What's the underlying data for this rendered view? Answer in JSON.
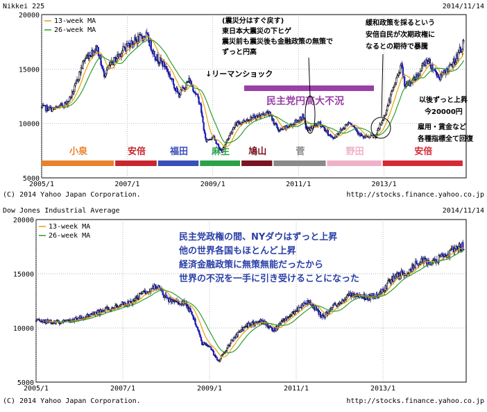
{
  "chart_data": [
    {
      "type": "candlestick",
      "title": "Nikkei 225",
      "date": "2014/11/14",
      "legend": [
        "13-week MA",
        "26-week MA"
      ],
      "ma_colors": [
        "#e8a000",
        "#2e9a2e"
      ],
      "copyright": "(C) 2014 Yahoo Japan Corporation.",
      "source": "http://stocks.finance.yahoo.co.jp",
      "ylim": [
        5000,
        20000
      ],
      "yticks": [
        {
          "v": 20000,
          "label": "20000"
        },
        {
          "v": 15000,
          "label": "15000"
        },
        {
          "v": 10000,
          "label": "10000"
        },
        {
          "v": 5000,
          "label": "5000"
        }
      ],
      "xlim": [
        2005.0,
        2014.92
      ],
      "xticks": [
        {
          "v": 2005.0,
          "label": "2005/1"
        },
        {
          "v": 2007.0,
          "label": "2007/1"
        },
        {
          "v": 2009.0,
          "label": "2009/1"
        },
        {
          "v": 2011.0,
          "label": "2011/1"
        },
        {
          "v": 2013.0,
          "label": "2013/1"
        }
      ],
      "series": [
        {
          "t": 2005.0,
          "v": 11450
        },
        {
          "t": 2005.3,
          "v": 11300
        },
        {
          "t": 2005.6,
          "v": 11900
        },
        {
          "t": 2005.75,
          "v": 13000
        },
        {
          "t": 2006.0,
          "v": 15900
        },
        {
          "t": 2006.3,
          "v": 17000
        },
        {
          "t": 2006.45,
          "v": 14500
        },
        {
          "t": 2006.7,
          "v": 15800
        },
        {
          "t": 2007.0,
          "v": 17200
        },
        {
          "t": 2007.45,
          "v": 18100
        },
        {
          "t": 2007.65,
          "v": 16200
        },
        {
          "t": 2007.9,
          "v": 15200
        },
        {
          "t": 2008.2,
          "v": 12600
        },
        {
          "t": 2008.45,
          "v": 14000
        },
        {
          "t": 2008.7,
          "v": 11900
        },
        {
          "t": 2008.83,
          "v": 8400
        },
        {
          "t": 2009.0,
          "v": 8800
        },
        {
          "t": 2009.2,
          "v": 7400
        },
        {
          "t": 2009.5,
          "v": 9800
        },
        {
          "t": 2009.75,
          "v": 10300
        },
        {
          "t": 2010.0,
          "v": 10600
        },
        {
          "t": 2010.3,
          "v": 11000
        },
        {
          "t": 2010.55,
          "v": 9300
        },
        {
          "t": 2010.85,
          "v": 9900
        },
        {
          "t": 2011.1,
          "v": 10600
        },
        {
          "t": 2011.2,
          "v": 9400
        },
        {
          "t": 2011.5,
          "v": 10000
        },
        {
          "t": 2011.8,
          "v": 8600
        },
        {
          "t": 2012.2,
          "v": 10200
        },
        {
          "t": 2012.5,
          "v": 8700
        },
        {
          "t": 2012.8,
          "v": 8800
        },
        {
          "t": 2013.0,
          "v": 10600
        },
        {
          "t": 2013.4,
          "v": 15400
        },
        {
          "t": 2013.5,
          "v": 13300
        },
        {
          "t": 2013.8,
          "v": 14500
        },
        {
          "t": 2014.0,
          "v": 15900
        },
        {
          "t": 2014.3,
          "v": 14200
        },
        {
          "t": 2014.6,
          "v": 15400
        },
        {
          "t": 2014.87,
          "v": 17400
        }
      ],
      "annotations": [
        {
          "text": "↓リーマンショック",
          "color": "#000000"
        },
        {
          "text": "民主党円高大不況",
          "color": "#9a3fa6"
        }
      ],
      "quake_note": [
        "(震災分はすぐ戻す)",
        "東日本大震災の下ヒゲ",
        "震災前も震災後も金融政策の無策で",
        "ずっと円高"
      ],
      "policy_note": [
        "緩和政策を採るという",
        "安倍自民が次期政権に",
        "なるとの期待で暴騰"
      ],
      "right_note": [
        "以後ずっと上昇",
        "今20000円",
        "雇用・賃金など",
        "各種指標全て回復"
      ],
      "eras": [
        {
          "name": "小泉",
          "t0": 2005.0,
          "t1": 2006.72,
          "color": "#e8822e"
        },
        {
          "name": "安倍",
          "t0": 2006.72,
          "t1": 2007.72,
          "color": "#c8262e"
        },
        {
          "name": "福田",
          "t0": 2007.72,
          "t1": 2008.7,
          "color": "#3a4fb8"
        },
        {
          "name": "麻生",
          "t0": 2008.7,
          "t1": 2009.67,
          "color": "#2aa24a"
        },
        {
          "name": "鳩山",
          "t0": 2009.67,
          "t1": 2010.42,
          "color": "#7a1420"
        },
        {
          "name": "菅",
          "t0": 2010.42,
          "t1": 2011.67,
          "color": "#8a8a8a"
        },
        {
          "name": "野田",
          "t0": 2011.67,
          "t1": 2012.97,
          "color": "#f0b0c8"
        },
        {
          "name": "安倍",
          "t0": 2012.97,
          "t1": 2014.87,
          "color": "#d42a36"
        }
      ]
    },
    {
      "type": "candlestick",
      "title": "Dow Jones Industrial Average",
      "date": "2014/11/14",
      "legend": [
        "13-week MA",
        "26-week MA"
      ],
      "ma_colors": [
        "#e8a000",
        "#2e9a2e"
      ],
      "copyright": "(C) 2014 Yahoo Japan Corporation.",
      "source": "http://stocks.finance.yahoo.co.jp",
      "ylim": [
        5000,
        20000
      ],
      "yticks": [
        {
          "v": 20000,
          "label": "20000"
        },
        {
          "v": 15000,
          "label": "15000"
        },
        {
          "v": 10000,
          "label": "10000"
        },
        {
          "v": 5000,
          "label": "5000"
        }
      ],
      "xlim": [
        2005.0,
        2014.92
      ],
      "xticks": [
        {
          "v": 2005.0,
          "label": "2005/1"
        },
        {
          "v": 2007.0,
          "label": "2007/1"
        },
        {
          "v": 2009.0,
          "label": "2009/1"
        },
        {
          "v": 2011.0,
          "label": "2011/1"
        },
        {
          "v": 2013.0,
          "label": "2013/1"
        }
      ],
      "series": [
        {
          "t": 2005.0,
          "v": 10600
        },
        {
          "t": 2005.5,
          "v": 10500
        },
        {
          "t": 2006.0,
          "v": 10900
        },
        {
          "t": 2006.4,
          "v": 11300
        },
        {
          "t": 2006.8,
          "v": 12000
        },
        {
          "t": 2007.2,
          "v": 12400
        },
        {
          "t": 2007.6,
          "v": 13500
        },
        {
          "t": 2007.8,
          "v": 13900
        },
        {
          "t": 2008.0,
          "v": 12700
        },
        {
          "t": 2008.4,
          "v": 12300
        },
        {
          "t": 2008.6,
          "v": 11400
        },
        {
          "t": 2008.83,
          "v": 8600
        },
        {
          "t": 2009.0,
          "v": 8300
        },
        {
          "t": 2009.2,
          "v": 6900
        },
        {
          "t": 2009.5,
          "v": 8800
        },
        {
          "t": 2009.8,
          "v": 10100
        },
        {
          "t": 2010.2,
          "v": 10600
        },
        {
          "t": 2010.5,
          "v": 9800
        },
        {
          "t": 2010.8,
          "v": 11100
        },
        {
          "t": 2011.3,
          "v": 12500
        },
        {
          "t": 2011.6,
          "v": 11000
        },
        {
          "t": 2011.9,
          "v": 12100
        },
        {
          "t": 2012.3,
          "v": 13200
        },
        {
          "t": 2012.6,
          "v": 12800
        },
        {
          "t": 2012.9,
          "v": 13000
        },
        {
          "t": 2013.2,
          "v": 14500
        },
        {
          "t": 2013.6,
          "v": 15300
        },
        {
          "t": 2013.9,
          "v": 16300
        },
        {
          "t": 2014.2,
          "v": 16100
        },
        {
          "t": 2014.5,
          "v": 16900
        },
        {
          "t": 2014.87,
          "v": 17600
        }
      ],
      "annotation_lines": [
        "民主党政権の間、NYダウはずっと上昇",
        "他の世界各国もほとんど上昇",
        "経済金融政策に無策無能だったから",
        "世界の不況を一手に引き受けることになった"
      ],
      "annotation_color": "#2a3fa8"
    }
  ]
}
